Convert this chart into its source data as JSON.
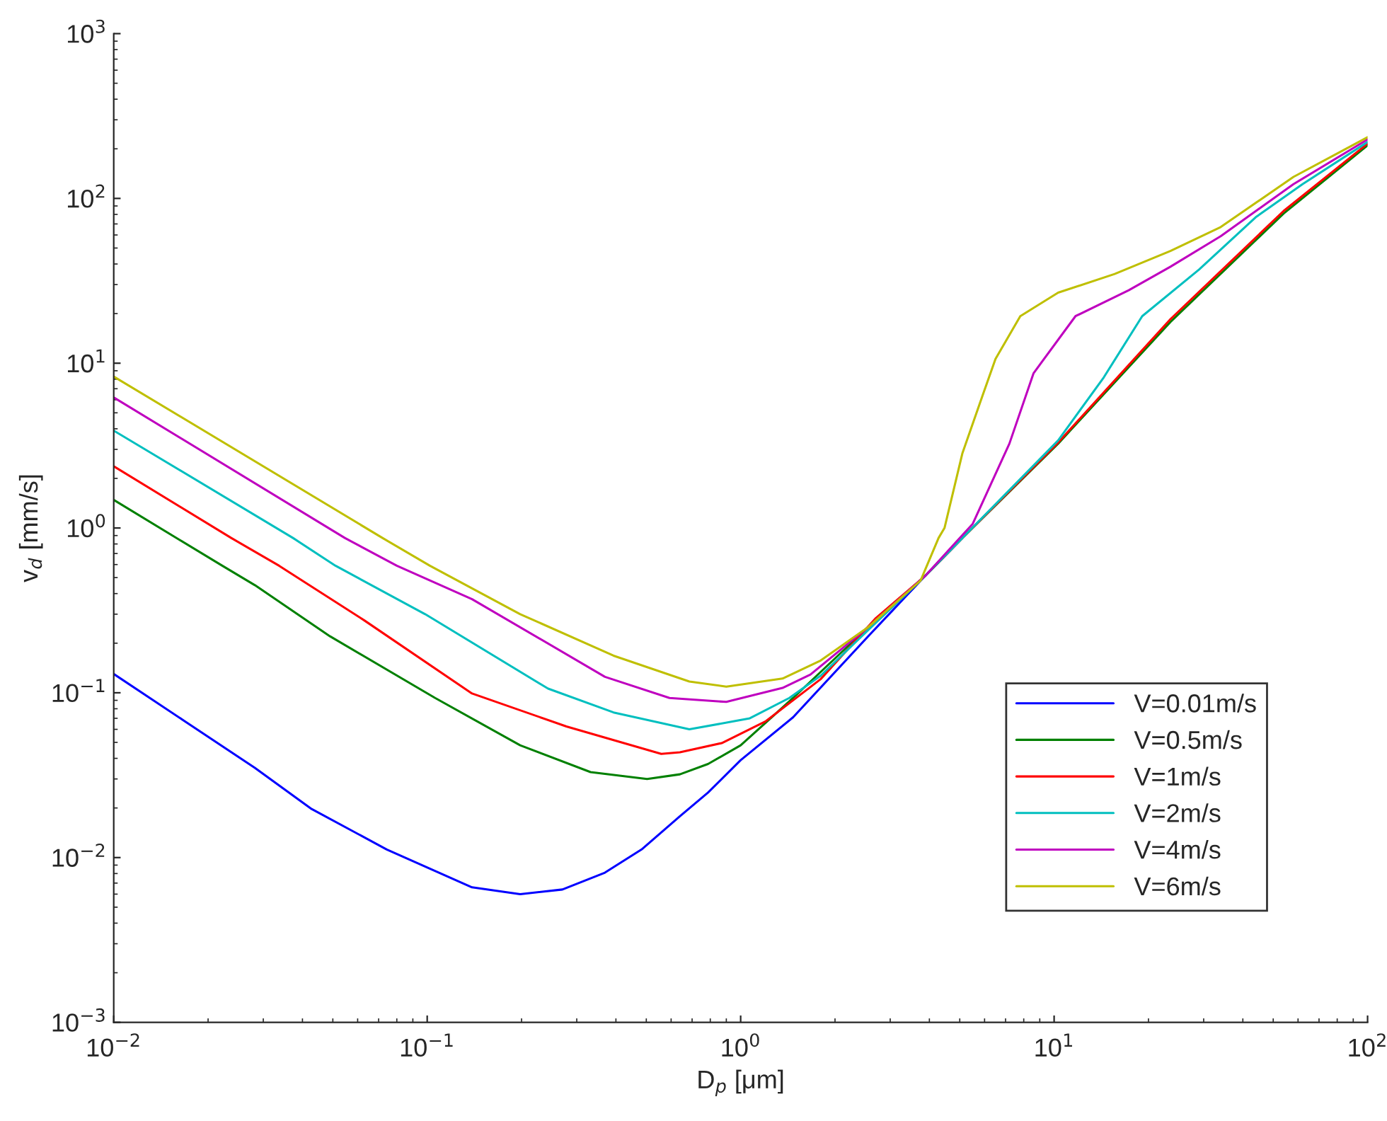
{
  "chart_data": {
    "type": "line",
    "xlabel": "D$_{p}$ [μm]",
    "ylabel": "v$_{d}$ [mm/s]",
    "log": "xy",
    "grid": false,
    "legend": "bottom right",
    "line_style": "solid",
    "xlim": [
      0.01,
      100
    ],
    "ylim": [
      0.001,
      1000
    ],
    "xticks": [
      {
        "value": 0.01,
        "label": "10$^{−2}$"
      },
      {
        "value": 0.1,
        "label": "10$^{−1}$"
      },
      {
        "value": 1,
        "label": "10$^{0}$"
      },
      {
        "value": 10,
        "label": "10$^{1}$"
      },
      {
        "value": 100,
        "label": "10$^{2}$"
      }
    ],
    "yticks": [
      {
        "value": 0.001,
        "label": "10$^{−3}$"
      },
      {
        "value": 0.01,
        "label": "10$^{−2}$"
      },
      {
        "value": 0.1,
        "label": "10$^{−1}$"
      },
      {
        "value": 1,
        "label": "10$^{0}$"
      },
      {
        "value": 10,
        "label": "10$^{1}$"
      },
      {
        "value": 100,
        "label": "10$^{2}$"
      },
      {
        "value": 1000,
        "label": "10$^{3}$"
      }
    ],
    "series": [
      {
        "name": "V=0.01m/s",
        "color": "#0000ff",
        "x": [
          0.01,
          0.0282,
          0.0428,
          0.0743,
          0.139,
          0.198,
          0.27,
          0.369,
          0.483,
          0.64,
          0.787,
          1,
          1.47,
          2.55,
          3.87,
          5.1
        ],
        "values": [
          0.13,
          0.035,
          0.0197,
          0.0112,
          0.0066,
          0.006,
          0.0064,
          0.0081,
          0.0112,
          0.0178,
          0.0248,
          0.039,
          0.071,
          0.22,
          0.51,
          0.87
        ]
      },
      {
        "name": "V=0.5m/s",
        "color": "#008000",
        "x": [
          0.01,
          0.0222,
          0.0282,
          0.049,
          0.106,
          0.198,
          0.332,
          0.503,
          0.64,
          0.787,
          1,
          1.47,
          2.55,
          3.87,
          5.1,
          10.3,
          23.5,
          54,
          100
        ],
        "values": [
          1.48,
          0.59,
          0.45,
          0.22,
          0.093,
          0.048,
          0.033,
          0.03,
          0.032,
          0.037,
          0.048,
          0.093,
          0.25,
          0.51,
          0.87,
          3.25,
          17.8,
          81,
          210
        ]
      },
      {
        "name": "V=1m/s",
        "color": "#ff0000",
        "x": [
          0.01,
          0.0237,
          0.0337,
          0.063,
          0.139,
          0.278,
          0.558,
          0.64,
          0.87,
          1.2,
          1.8,
          2.7,
          3.87,
          5.1,
          10.3,
          23.5,
          54,
          100
        ],
        "values": [
          2.37,
          0.87,
          0.59,
          0.275,
          0.099,
          0.0625,
          0.0426,
          0.0435,
          0.0495,
          0.067,
          0.121,
          0.284,
          0.51,
          0.87,
          3.3,
          18.5,
          84,
          215
        ]
      },
      {
        "name": "V=2m/s",
        "color": "#00bfbf",
        "x": [
          0.01,
          0.0373,
          0.051,
          0.0985,
          0.243,
          0.393,
          0.686,
          1.07,
          1.43,
          1.8,
          2.55,
          3.87,
          5.1,
          10.3,
          14.4,
          19.1,
          29,
          44,
          62,
          100
        ],
        "values": [
          3.9,
          0.87,
          0.59,
          0.3,
          0.106,
          0.076,
          0.06,
          0.07,
          0.093,
          0.127,
          0.24,
          0.51,
          0.87,
          3.4,
          8.2,
          19.3,
          37,
          77,
          122,
          220
        ]
      },
      {
        "name": "V=4m/s",
        "color": "#bf00bf",
        "x": [
          0.01,
          0.0546,
          0.08,
          0.139,
          0.369,
          0.593,
          0.9,
          1.36,
          1.67,
          2.55,
          3.87,
          5.5,
          7.2,
          8.6,
          11.7,
          17.3,
          23.5,
          34,
          58,
          100
        ],
        "values": [
          6.2,
          0.87,
          0.59,
          0.37,
          0.125,
          0.093,
          0.088,
          0.107,
          0.129,
          0.25,
          0.51,
          1.06,
          3.25,
          8.7,
          19.3,
          27.7,
          38.5,
          59,
          122,
          228
        ]
      },
      {
        "name": "V=6m/s",
        "color": "#bfbf00",
        "x": [
          0.01,
          0.072,
          0.102,
          0.198,
          0.393,
          0.686,
          0.9,
          1.36,
          1.8,
          2.55,
          3.75,
          4.28,
          4.47,
          5.1,
          5.9,
          6.5,
          7.8,
          10.3,
          15.6,
          23.5,
          34,
          58,
          100
        ],
        "values": [
          8.3,
          0.87,
          0.59,
          0.3,
          0.168,
          0.117,
          0.109,
          0.122,
          0.157,
          0.25,
          0.48,
          0.87,
          1.0,
          2.85,
          6.3,
          10.6,
          19.3,
          26.8,
          34.8,
          48,
          67,
          135,
          235
        ]
      }
    ]
  }
}
